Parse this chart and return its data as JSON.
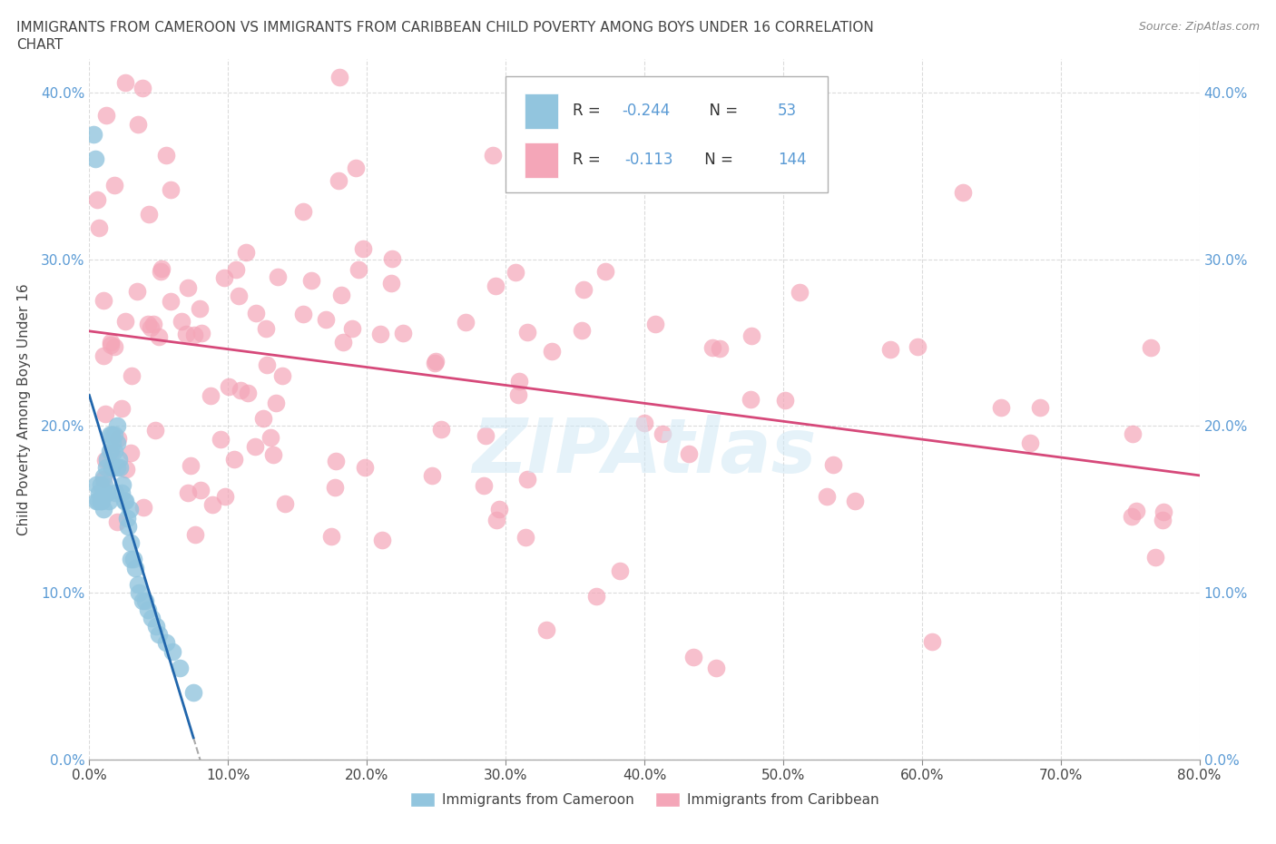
{
  "title_line1": "IMMIGRANTS FROM CAMEROON VS IMMIGRANTS FROM CARIBBEAN CHILD POVERTY AMONG BOYS UNDER 16 CORRELATION",
  "title_line2": "CHART",
  "source_text": "Source: ZipAtlas.com",
  "ylabel": "Child Poverty Among Boys Under 16",
  "xlim": [
    0,
    0.8
  ],
  "ylim": [
    0,
    0.42
  ],
  "xticks": [
    0.0,
    0.1,
    0.2,
    0.3,
    0.4,
    0.5,
    0.6,
    0.7,
    0.8
  ],
  "yticks": [
    0.0,
    0.1,
    0.2,
    0.3,
    0.4
  ],
  "xtick_labels": [
    "0.0%",
    "10.0%",
    "20.0%",
    "30.0%",
    "40.0%",
    "50.0%",
    "60.0%",
    "70.0%",
    "80.0%"
  ],
  "ytick_labels": [
    "0.0%",
    "10.0%",
    "20.0%",
    "30.0%",
    "40.0%"
  ],
  "legend_label1": "Immigrants from Cameroon",
  "legend_label2": "Immigrants from Caribbean",
  "R1": "-0.244",
  "N1": "53",
  "R2": "-0.113",
  "N2": "144",
  "color1": "#92c5de",
  "color2": "#f4a6b8",
  "trendline1_color": "#2166ac",
  "trendline2_color": "#d6497a",
  "background_color": "#ffffff",
  "watermark": "ZIPAtlas",
  "grid_color": "#cccccc",
  "text_color": "#444444",
  "blue_tick_color": "#5b9bd5",
  "source_color": "#888888"
}
